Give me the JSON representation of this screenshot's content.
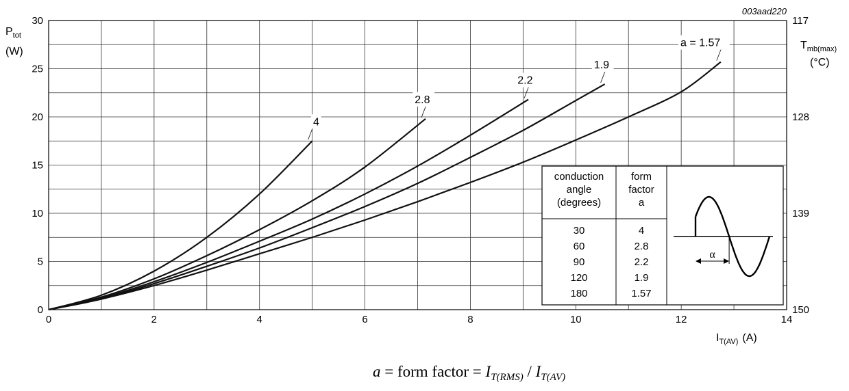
{
  "figure_code": "003aad220",
  "left_axis": {
    "name": "P",
    "sub": "tot",
    "unit": "(W)"
  },
  "right_axis": {
    "name": "T",
    "sub": "mb(max)",
    "unit": "(°C)"
  },
  "x_axis": {
    "name": "I",
    "sub": "T(AV)",
    "unit": "(A)"
  },
  "formula": {
    "a": "a",
    "eq": " = form factor = ",
    "i1": "I",
    "s1": "T(RMS)",
    "slash": " / ",
    "i2": "I",
    "s2": "T(AV)"
  },
  "chart_data": {
    "type": "line",
    "xlim": [
      0,
      14
    ],
    "ylim": [
      0,
      30
    ],
    "x_ticks": [
      0,
      2,
      4,
      6,
      8,
      10,
      12,
      14
    ],
    "y_ticks": [
      0,
      5,
      10,
      15,
      20,
      25,
      30
    ],
    "x_minor_grid_step": 1,
    "y_minor_grid_step": 2.5,
    "right_axis_ticks": [
      {
        "at": 30,
        "label": "117"
      },
      {
        "at": 20,
        "label": "128"
      },
      {
        "at": 10,
        "label": "139"
      },
      {
        "at": 0,
        "label": "150"
      }
    ],
    "grid": true,
    "series": [
      {
        "name": "4",
        "points": [
          [
            0,
            0
          ],
          [
            1,
            1.5
          ],
          [
            2,
            4.0
          ],
          [
            3,
            7.5
          ],
          [
            4,
            12.0
          ],
          [
            5,
            17.5
          ]
        ]
      },
      {
        "name": "2.8",
        "points": [
          [
            0,
            0
          ],
          [
            1,
            1.3
          ],
          [
            2,
            3.2
          ],
          [
            3,
            5.6
          ],
          [
            4,
            8.3
          ],
          [
            5,
            11.3
          ],
          [
            6,
            14.8
          ],
          [
            7.15,
            19.8
          ]
        ]
      },
      {
        "name": "2.2",
        "points": [
          [
            0,
            0
          ],
          [
            1,
            1.2
          ],
          [
            2,
            2.9
          ],
          [
            3,
            4.9
          ],
          [
            4,
            7.1
          ],
          [
            5,
            9.4
          ],
          [
            6,
            12.0
          ],
          [
            7,
            14.9
          ],
          [
            8,
            18.1
          ],
          [
            9.1,
            21.8
          ]
        ]
      },
      {
        "name": "1.9",
        "points": [
          [
            0,
            0
          ],
          [
            1,
            1.1
          ],
          [
            2,
            2.7
          ],
          [
            3,
            4.5
          ],
          [
            4,
            6.4
          ],
          [
            5,
            8.5
          ],
          [
            6,
            10.7
          ],
          [
            7,
            13.1
          ],
          [
            8,
            15.8
          ],
          [
            9,
            18.6
          ],
          [
            10,
            21.7
          ],
          [
            10.55,
            23.4
          ]
        ]
      },
      {
        "name": "a = 1.57",
        "points": [
          [
            0,
            0
          ],
          [
            1,
            1.1
          ],
          [
            2,
            2.5
          ],
          [
            3,
            4.1
          ],
          [
            4,
            5.8
          ],
          [
            5,
            7.5
          ],
          [
            6,
            9.3
          ],
          [
            7,
            11.2
          ],
          [
            8,
            13.2
          ],
          [
            9,
            15.3
          ],
          [
            10,
            17.6
          ],
          [
            11,
            20.0
          ],
          [
            12,
            22.6
          ],
          [
            12.75,
            25.7
          ]
        ]
      }
    ]
  },
  "table": {
    "headers": [
      [
        "conduction",
        "angle",
        "(degrees)"
      ],
      [
        "form",
        "factor",
        "a"
      ]
    ],
    "rows": [
      [
        "30",
        "4"
      ],
      [
        "60",
        "2.8"
      ],
      [
        "90",
        "2.2"
      ],
      [
        "120",
        "1.9"
      ],
      [
        "180",
        "1.57"
      ]
    ],
    "waveform_label": "α"
  }
}
